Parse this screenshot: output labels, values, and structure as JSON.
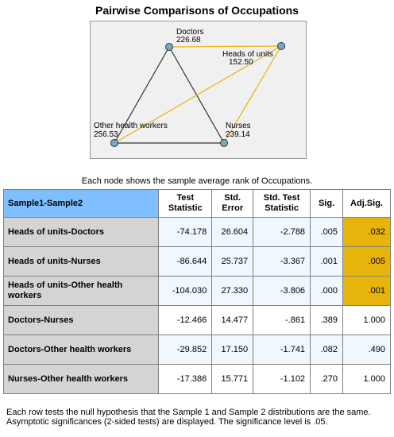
{
  "title": "Pairwise Comparisons of Occupations",
  "graph": {
    "nodes": [
      {
        "name": "Doctors",
        "value": "226.68"
      },
      {
        "name": "Heads of units",
        "value": "152.50"
      },
      {
        "name": "Other health workers",
        "value": "256.53"
      },
      {
        "name": "Nurses",
        "value": "239.14"
      }
    ],
    "colors": {
      "significant_edge": "#e6b40a",
      "nonsignificant_edge": "#333333",
      "node_fill": "#74aac9"
    }
  },
  "caption": "Each node shows the sample average rank of Occupations.",
  "table": {
    "headers": {
      "pair": "Sample1-Sample2",
      "test_stat": "Test Statistic",
      "std_error": "Std. Error",
      "std_test_stat": "Std. Test Statistic",
      "sig": "Sig.",
      "adj_sig": "Adj.Sig."
    },
    "rows": [
      {
        "pair": "Heads of units-Doctors",
        "test_stat": "-74.178",
        "std_error": "26.604",
        "std_test_stat": "-2.788",
        "sig": ".005",
        "adj_sig": ".032"
      },
      {
        "pair": "Heads of units-Nurses",
        "test_stat": "-86.644",
        "std_error": "25.737",
        "std_test_stat": "-3.367",
        "sig": ".001",
        "adj_sig": ".005"
      },
      {
        "pair": "Heads of units-Other health workers",
        "test_stat": "-104.030",
        "std_error": "27.330",
        "std_test_stat": "-3.806",
        "sig": ".000",
        "adj_sig": ".001"
      },
      {
        "pair": "Doctors-Nurses",
        "test_stat": "-12.466",
        "std_error": "14.477",
        "std_test_stat": "-.861",
        "sig": ".389",
        "adj_sig": "1.000"
      },
      {
        "pair": "Doctors-Other health workers",
        "test_stat": "-29.852",
        "std_error": "17.150",
        "std_test_stat": "-1.741",
        "sig": ".082",
        "adj_sig": ".490"
      },
      {
        "pair": "Nurses-Other health workers",
        "test_stat": "-17.386",
        "std_error": "15.771",
        "std_test_stat": "-1.102",
        "sig": ".270",
        "adj_sig": "1.000"
      }
    ],
    "highlight_color": "#e6b40a"
  },
  "footnotes": {
    "line1": "Each row tests the null hypothesis that the Sample 1 and Sample 2 distributions are the same.",
    "line2": "Asymptotic significances (2-sided tests) are displayed. The significance level is .05."
  }
}
